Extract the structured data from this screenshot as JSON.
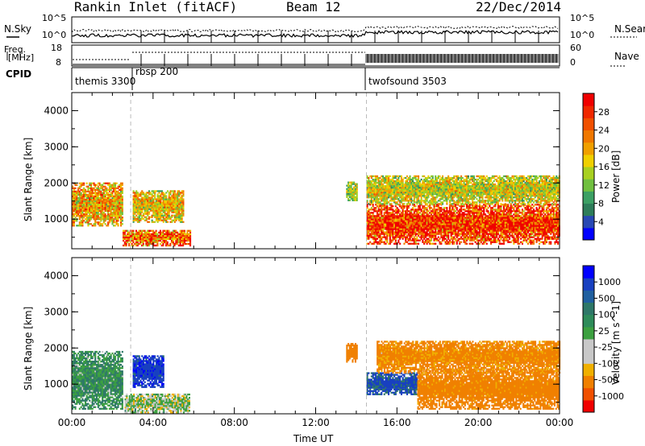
{
  "header": {
    "title": "Rankin Inlet (fitACF)",
    "beam": "Beam 12",
    "date": "22/Dec/2014"
  },
  "summary": {
    "nsky_label": "N.Sky",
    "nsearch_label": "N.Search",
    "freq_label_1": "Freq.",
    "freq_label_2": "[MHz]",
    "nave_label": "Nave",
    "cpid_label": "CPID",
    "noise_ticks_left": [
      "10^5",
      "10^0"
    ],
    "noise_ticks_right": [
      "10^5",
      "10^0"
    ],
    "freq_ticks": [
      "18",
      "8"
    ],
    "nave_ticks": [
      "60",
      "0"
    ],
    "cpid_segments": [
      {
        "name": "themis 3300",
        "start_hour": 0.0
      },
      {
        "name": "rbsp 200",
        "start_hour": 2.9
      },
      {
        "name": "twofsound 3503",
        "start_hour": 14.5
      }
    ]
  },
  "colors": {
    "power": [
      "#0000ff",
      "#2848b4",
      "#2e7d5a",
      "#3ca064",
      "#70c040",
      "#a8d020",
      "#f0d000",
      "#f0a000",
      "#f07800",
      "#f05000",
      "#f02800",
      "#f00000"
    ],
    "velocity": [
      "#f00000",
      "#f05000",
      "#f08000",
      "#f0b000",
      "#c8c8c8",
      "#c8c8c8",
      "#3ca040",
      "#2e8c5a",
      "#2e7868",
      "#2060a0",
      "#1840c0",
      "#0000ff"
    ]
  },
  "chart_data": [
    {
      "type": "heatmap",
      "panel": "power",
      "xlabel": "Time UT",
      "ylabel": "Slant Range [km]",
      "xlim": [
        0,
        24
      ],
      "ylim": [
        180,
        4500
      ],
      "x_ticks": [
        "00:00",
        "04:00",
        "08:00",
        "12:00",
        "16:00",
        "20:00",
        "00:00"
      ],
      "y_ticks": [
        "1000",
        "2000",
        "3000",
        "4000"
      ],
      "colorbar_label": "Power [dB]",
      "colorbar_ticks": [
        "4",
        "8",
        "12",
        "16",
        "20",
        "24",
        "28"
      ],
      "cpid_change_hours": [
        2.9,
        14.5
      ],
      "regions": [
        {
          "t0": 0.0,
          "t1": 2.5,
          "r0": 800,
          "r1": 2000,
          "value": 20
        },
        {
          "t0": 2.5,
          "t1": 5.8,
          "r0": 250,
          "r1": 700,
          "value": 24
        },
        {
          "t0": 3.0,
          "t1": 5.5,
          "r0": 900,
          "r1": 1800,
          "value": 18
        },
        {
          "t0": 13.5,
          "t1": 14.0,
          "r0": 1500,
          "r1": 2000,
          "value": 14
        },
        {
          "t0": 14.5,
          "t1": 24.0,
          "r0": 300,
          "r1": 1400,
          "value": 28
        },
        {
          "t0": 14.5,
          "t1": 24.0,
          "r0": 1400,
          "r1": 2200,
          "value": 16
        }
      ]
    },
    {
      "type": "heatmap",
      "panel": "velocity",
      "xlabel": "Time UT",
      "ylabel": "Slant Range [km]",
      "xlim": [
        0,
        24
      ],
      "ylim": [
        180,
        4500
      ],
      "x_ticks": [
        "00:00",
        "04:00",
        "08:00",
        "12:00",
        "16:00",
        "20:00",
        "00:00"
      ],
      "y_ticks": [
        "1000",
        "2000",
        "3000",
        "4000"
      ],
      "colorbar_label": "Velocity [m s^-1]",
      "colorbar_ticks": [
        "1000",
        "500",
        "100",
        "25",
        "-25",
        "-100",
        "-500",
        "-1000"
      ],
      "cpid_change_hours": [
        2.9,
        14.5
      ],
      "regions": [
        {
          "t0": 0.0,
          "t1": 2.5,
          "r0": 300,
          "r1": 1900,
          "value": 100
        },
        {
          "t0": 2.6,
          "t1": 5.8,
          "r0": 200,
          "r1": 700,
          "value": 25
        },
        {
          "t0": 3.0,
          "t1": 4.5,
          "r0": 900,
          "r1": 1800,
          "value": 800
        },
        {
          "t0": 13.5,
          "t1": 14.0,
          "r0": 1600,
          "r1": 2100,
          "value": -300
        },
        {
          "t0": 14.5,
          "t1": 17.0,
          "r0": 700,
          "r1": 1300,
          "value": 600
        },
        {
          "t0": 17.0,
          "t1": 24.0,
          "r0": 300,
          "r1": 1400,
          "value": -200
        },
        {
          "t0": 15.0,
          "t1": 24.0,
          "r0": 1300,
          "r1": 2200,
          "value": -150
        }
      ]
    }
  ]
}
